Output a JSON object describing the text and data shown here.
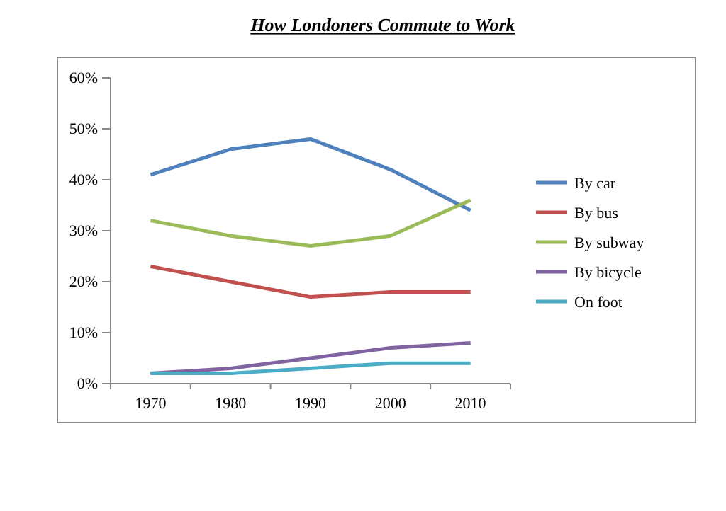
{
  "chart_data": {
    "type": "line",
    "title": "How Londoners Commute to Work",
    "categories": [
      "1970",
      "1980",
      "1990",
      "2000",
      "2010"
    ],
    "series": [
      {
        "name": "By car",
        "color": "#4f81bd",
        "values": [
          41,
          46,
          48,
          42,
          34
        ]
      },
      {
        "name": "By bus",
        "color": "#c0504d",
        "values": [
          23,
          20,
          17,
          18,
          18
        ]
      },
      {
        "name": "By subway",
        "color": "#9bbb59",
        "values": [
          32,
          29,
          27,
          29,
          36
        ]
      },
      {
        "name": "By bicycle",
        "color": "#8064a2",
        "values": [
          2,
          3,
          5,
          7,
          8
        ]
      },
      {
        "name": "On foot",
        "color": "#4bacc6",
        "values": [
          2,
          2,
          3,
          4,
          4
        ]
      }
    ],
    "ylim": [
      0,
      60
    ],
    "yticks": [
      {
        "value": 0,
        "label": "0%"
      },
      {
        "value": 10,
        "label": "10%"
      },
      {
        "value": 20,
        "label": "20%"
      },
      {
        "value": 30,
        "label": "30%"
      },
      {
        "value": 40,
        "label": "40%"
      },
      {
        "value": 50,
        "label": "50%"
      },
      {
        "value": 60,
        "label": "60%"
      }
    ],
    "grid": false,
    "legend": "right",
    "marker": "none",
    "line_style": "solid"
  }
}
